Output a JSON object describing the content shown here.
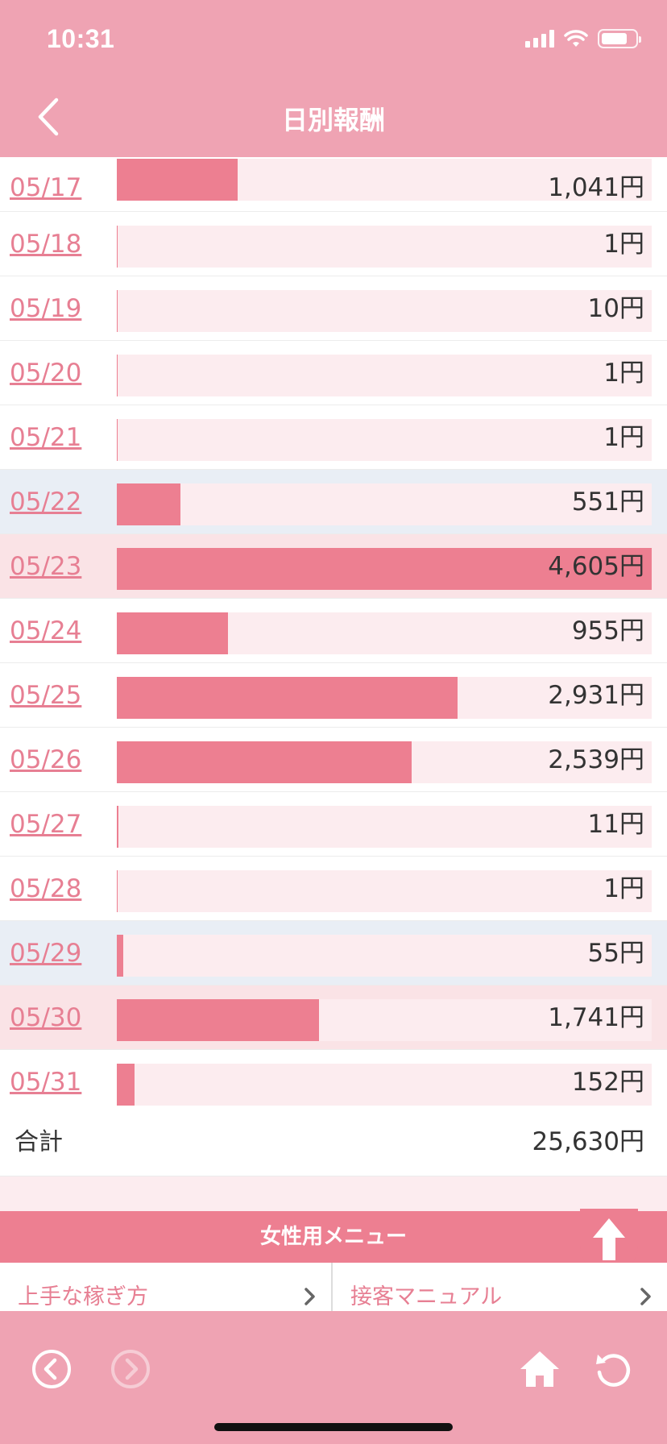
{
  "status_bar": {
    "time": "10:31"
  },
  "nav": {
    "title": "日別報酬"
  },
  "rows": [
    {
      "date": "05/17",
      "amount": "1,041円",
      "value": 1041,
      "day": "weekday"
    },
    {
      "date": "05/18",
      "amount": "1円",
      "value": 1,
      "day": "weekday"
    },
    {
      "date": "05/19",
      "amount": "10円",
      "value": 10,
      "day": "weekday"
    },
    {
      "date": "05/20",
      "amount": "1円",
      "value": 1,
      "day": "weekday"
    },
    {
      "date": "05/21",
      "amount": "1円",
      "value": 1,
      "day": "weekday"
    },
    {
      "date": "05/22",
      "amount": "551円",
      "value": 551,
      "day": "sat"
    },
    {
      "date": "05/23",
      "amount": "4,605円",
      "value": 4605,
      "day": "sun"
    },
    {
      "date": "05/24",
      "amount": "955円",
      "value": 955,
      "day": "weekday"
    },
    {
      "date": "05/25",
      "amount": "2,931円",
      "value": 2931,
      "day": "weekday"
    },
    {
      "date": "05/26",
      "amount": "2,539円",
      "value": 2539,
      "day": "weekday"
    },
    {
      "date": "05/27",
      "amount": "11円",
      "value": 11,
      "day": "weekday"
    },
    {
      "date": "05/28",
      "amount": "1円",
      "value": 1,
      "day": "weekday"
    },
    {
      "date": "05/29",
      "amount": "55円",
      "value": 55,
      "day": "sat"
    },
    {
      "date": "05/30",
      "amount": "1,741円",
      "value": 1741,
      "day": "sun"
    },
    {
      "date": "05/31",
      "amount": "152円",
      "value": 152,
      "day": "weekday"
    }
  ],
  "total": {
    "label": "合計",
    "value": "25,630円"
  },
  "menu": {
    "title": "女性用メニュー",
    "links": [
      {
        "label": "上手な稼ぎ方"
      },
      {
        "label": "接客マニュアル"
      }
    ]
  },
  "colors": {
    "accent": "#ed7f91",
    "header": "#efa3b3",
    "track": "#fcecef",
    "saturday": "#e9eef5",
    "sunday": "#fae3e6",
    "link": "#e77f93"
  },
  "icons": [
    "back-chevron-icon",
    "scroll-top-arrow-icon",
    "browser-back-icon",
    "browser-forward-icon",
    "home-icon",
    "reload-icon"
  ]
}
